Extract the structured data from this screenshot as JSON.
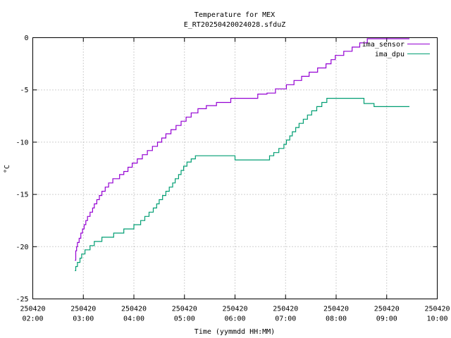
{
  "chart_data": {
    "type": "line",
    "title": "Temperature for MEX",
    "subtitle": "E_RT20250420024028.sfduZ",
    "xlabel": "Time (yymmdd HH:MM)",
    "ylabel": "°C",
    "xlim": [
      "250420 02:00",
      "250420 10:00"
    ],
    "ylim": [
      -25,
      0
    ],
    "y_ticks": [
      0,
      -5,
      -10,
      -15,
      -20,
      -25
    ],
    "x_ticks": [
      {
        "date": "250420",
        "time": "02:00"
      },
      {
        "date": "250420",
        "time": "03:00"
      },
      {
        "date": "250420",
        "time": "04:00"
      },
      {
        "date": "250420",
        "time": "05:00"
      },
      {
        "date": "250420",
        "time": "06:00"
      },
      {
        "date": "250420",
        "time": "07:00"
      },
      {
        "date": "250420",
        "time": "08:00"
      },
      {
        "date": "250420",
        "time": "09:00"
      },
      {
        "date": "250420",
        "time": "10:00"
      }
    ],
    "grid": true,
    "legend_position": "top-right",
    "series": [
      {
        "name": "ima_sensor",
        "color": "#9400d3",
        "step": true,
        "points": [
          [
            "02:50",
            -21.3
          ],
          [
            "02:51",
            -20.4
          ],
          [
            "02:52",
            -20.0
          ],
          [
            "02:53",
            -19.6
          ],
          [
            "02:55",
            -19.2
          ],
          [
            "02:57",
            -18.7
          ],
          [
            "02:59",
            -18.3
          ],
          [
            "03:01",
            -17.9
          ],
          [
            "03:03",
            -17.5
          ],
          [
            "03:05",
            -17.1
          ],
          [
            "03:08",
            -16.7
          ],
          [
            "03:11",
            -16.3
          ],
          [
            "03:13",
            -15.9
          ],
          [
            "03:16",
            -15.5
          ],
          [
            "03:19",
            -15.1
          ],
          [
            "03:22",
            -14.7
          ],
          [
            "03:26",
            -14.3
          ],
          [
            "03:30",
            -13.9
          ],
          [
            "03:35",
            -13.5
          ],
          [
            "03:43",
            -13.1
          ],
          [
            "03:48",
            -12.8
          ],
          [
            "03:53",
            -12.4
          ],
          [
            "03:58",
            -12.0
          ],
          [
            "04:04",
            -11.6
          ],
          [
            "04:10",
            -11.2
          ],
          [
            "04:16",
            -10.8
          ],
          [
            "04:22",
            -10.4
          ],
          [
            "04:28",
            -10.0
          ],
          [
            "04:33",
            -9.6
          ],
          [
            "04:38",
            -9.2
          ],
          [
            "04:44",
            -8.8
          ],
          [
            "04:50",
            -8.4
          ],
          [
            "04:56",
            -8.0
          ],
          [
            "05:02",
            -7.6
          ],
          [
            "05:08",
            -7.2
          ],
          [
            "05:16",
            -6.8
          ],
          [
            "05:26",
            -6.5
          ],
          [
            "05:38",
            -6.2
          ],
          [
            "05:55",
            -5.8
          ],
          [
            "06:27",
            -5.4
          ],
          [
            "06:38",
            -5.3
          ],
          [
            "06:48",
            -4.9
          ],
          [
            "07:01",
            -4.5
          ],
          [
            "07:10",
            -4.1
          ],
          [
            "07:19",
            -3.7
          ],
          [
            "07:28",
            -3.3
          ],
          [
            "07:38",
            -2.9
          ],
          [
            "07:48",
            -2.5
          ],
          [
            "07:54",
            -2.1
          ],
          [
            "07:59",
            -1.7
          ],
          [
            "08:09",
            -1.3
          ],
          [
            "08:19",
            -0.9
          ],
          [
            "08:28",
            -0.5
          ],
          [
            "08:37",
            -0.1
          ],
          [
            "09:27",
            -0.1
          ]
        ]
      },
      {
        "name": "ima_dpu",
        "color": "#009e73",
        "step": true,
        "points": [
          [
            "02:50",
            -22.3
          ],
          [
            "02:51",
            -21.9
          ],
          [
            "02:53",
            -21.5
          ],
          [
            "02:56",
            -21.1
          ],
          [
            "02:58",
            -20.7
          ],
          [
            "03:02",
            -20.3
          ],
          [
            "03:08",
            -19.9
          ],
          [
            "03:13",
            -19.5
          ],
          [
            "03:22",
            -19.1
          ],
          [
            "03:36",
            -18.7
          ],
          [
            "03:48",
            -18.3
          ],
          [
            "04:00",
            -17.9
          ],
          [
            "04:08",
            -17.5
          ],
          [
            "04:13",
            -17.1
          ],
          [
            "04:18",
            -16.7
          ],
          [
            "04:23",
            -16.3
          ],
          [
            "04:27",
            -15.9
          ],
          [
            "04:30",
            -15.5
          ],
          [
            "04:34",
            -15.1
          ],
          [
            "04:38",
            -14.7
          ],
          [
            "04:42",
            -14.3
          ],
          [
            "04:46",
            -13.9
          ],
          [
            "04:49",
            -13.5
          ],
          [
            "04:53",
            -13.1
          ],
          [
            "04:56",
            -12.7
          ],
          [
            "04:59",
            -12.3
          ],
          [
            "05:03",
            -11.9
          ],
          [
            "05:08",
            -11.6
          ],
          [
            "05:13",
            -11.3
          ],
          [
            "06:00",
            -11.7
          ],
          [
            "06:41",
            -11.3
          ],
          [
            "06:46",
            -11.0
          ],
          [
            "06:52",
            -10.6
          ],
          [
            "06:58",
            -10.2
          ],
          [
            "07:01",
            -9.8
          ],
          [
            "07:05",
            -9.4
          ],
          [
            "07:08",
            -9.0
          ],
          [
            "07:12",
            -8.6
          ],
          [
            "07:16",
            -8.2
          ],
          [
            "07:21",
            -7.8
          ],
          [
            "07:26",
            -7.4
          ],
          [
            "07:31",
            -7.0
          ],
          [
            "07:37",
            -6.6
          ],
          [
            "07:43",
            -6.2
          ],
          [
            "07:49",
            -5.8
          ],
          [
            "08:33",
            -6.3
          ],
          [
            "08:45",
            -6.6
          ],
          [
            "09:27",
            -6.6
          ]
        ]
      }
    ]
  }
}
